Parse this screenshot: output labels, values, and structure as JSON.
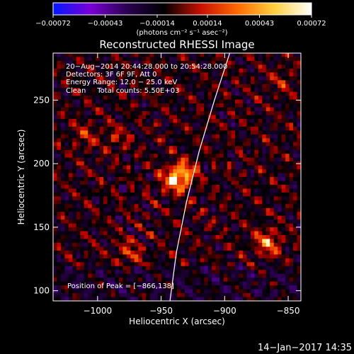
{
  "chart_data": {
    "type": "heatmap",
    "title": "Reconstructed RHESSI Image",
    "xlabel": "Heliocentric X (arcsec)",
    "ylabel": "Heliocentric Y (arcsec)",
    "xlim": [
      -1035,
      -840
    ],
    "ylim": [
      92,
      287
    ],
    "x_ticks": [
      -1000,
      -950,
      -900,
      -850
    ],
    "x_tick_labels": [
      "−1000",
      "−950",
      "−900",
      "−850"
    ],
    "y_ticks": [
      100,
      150,
      200,
      250
    ],
    "y_tick_labels": [
      "100",
      "150",
      "200",
      "250"
    ],
    "colorbar": {
      "range": [
        -0.00072,
        0.00072
      ],
      "ticks": [
        -0.00072,
        -0.00043,
        -0.00014,
        0.00014,
        0.00043,
        0.00072
      ],
      "tick_labels": [
        "−0.00072",
        "−0.00043",
        "−0.00014",
        "0.00014",
        "0.00043",
        "0.00072"
      ],
      "unit_label": "(photons cm⁻² s⁻¹ asec⁻²)",
      "colors": [
        "#0018ff",
        "#7a00d8",
        "#2a0050",
        "#000000",
        "#c81000",
        "#ff6a00",
        "#ffd040",
        "#ffffff"
      ]
    },
    "annotations": [
      "20−Aug−2014 20:44:28.000 to 20:54:28.000",
      "Detectors: 3F 6F 9F, Att 0",
      "Energy Range: 12.0 − 25.0 keV",
      "Clean     Total counts: 5.50E+03"
    ],
    "peak_text": "Position of Peak = [−866,138]",
    "peak": [
      -866,
      138
    ],
    "sources": [
      {
        "x": -940,
        "y": 187,
        "amp": 1.0
      },
      {
        "x": -931,
        "y": 193,
        "amp": 0.8
      },
      {
        "x": -866,
        "y": 138,
        "amp": 0.9
      },
      {
        "x": -975,
        "y": 130,
        "amp": 0.55
      },
      {
        "x": -1010,
        "y": 222,
        "amp": 0.45
      },
      {
        "x": -985,
        "y": 220,
        "amp": 0.4
      },
      {
        "x": -855,
        "y": 265,
        "amp": 0.35
      }
    ],
    "limb": [
      [
        -943,
        92
      ],
      [
        -938,
        130
      ],
      [
        -930,
        170
      ],
      [
        -920,
        210
      ],
      [
        -908,
        250
      ],
      [
        -896,
        287
      ]
    ]
  },
  "footer_date": "14−Jan−2017 14:35"
}
